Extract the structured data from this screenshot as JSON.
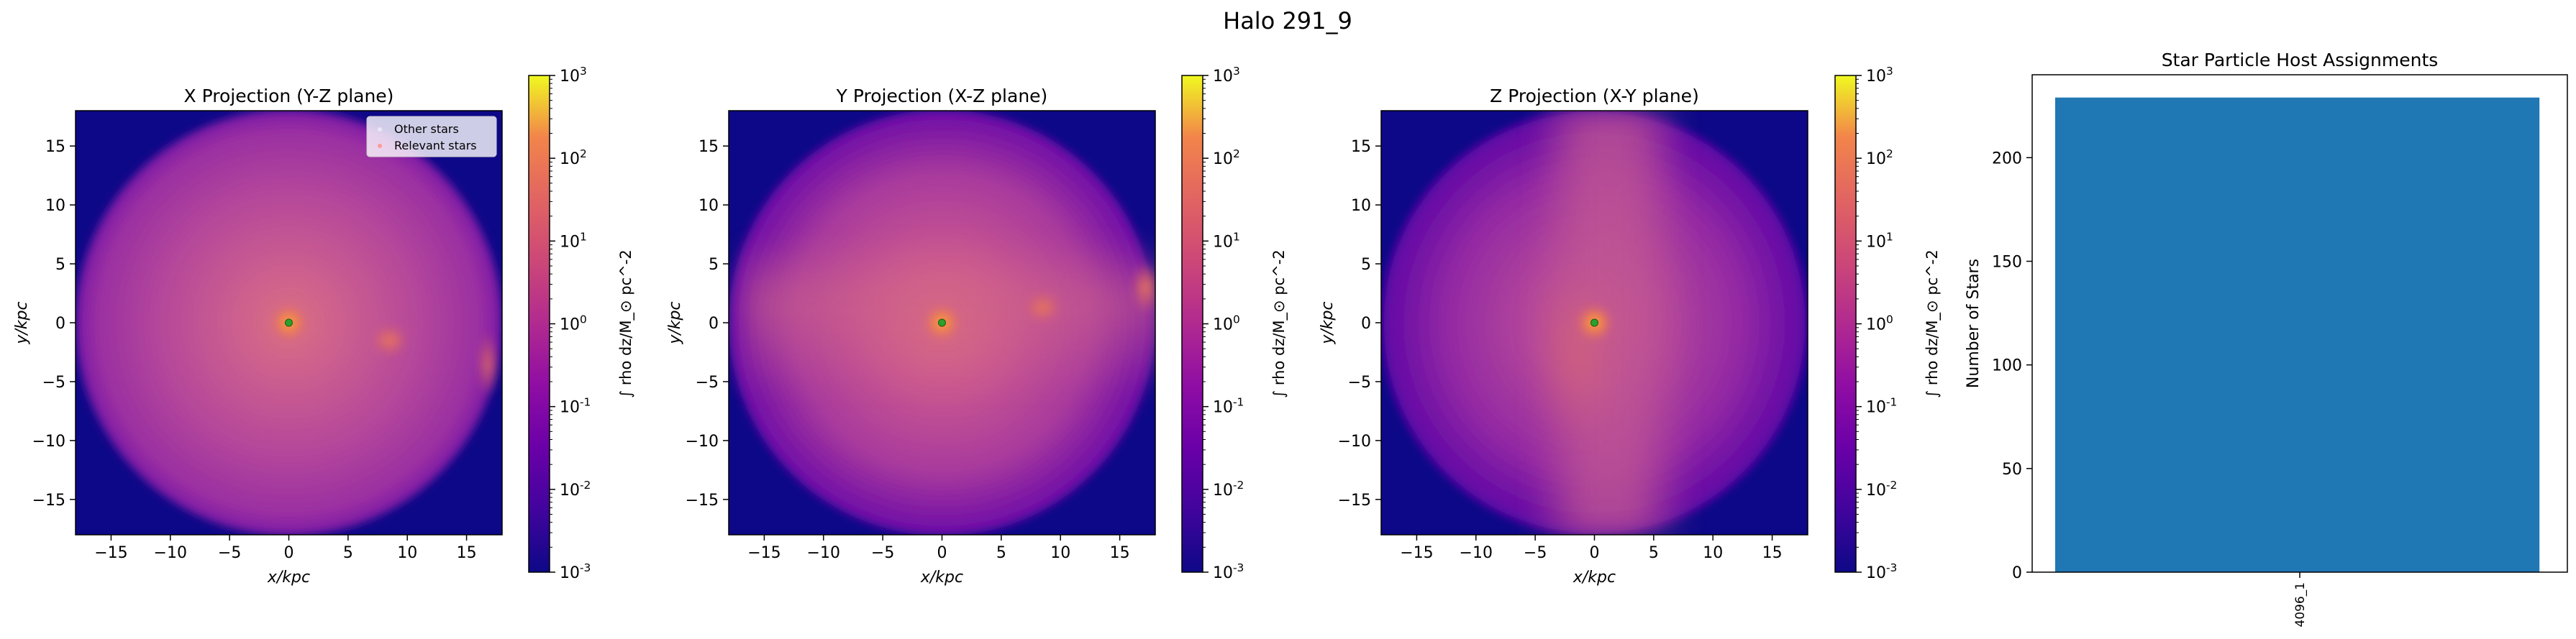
{
  "figure": {
    "suptitle": "Halo 291_9"
  },
  "colorbar": {
    "label": "∫ rho dz/M_⊙ pc^-2",
    "tick_labels": [
      "10^-3",
      "10^-2",
      "10^-1",
      "10^0",
      "10^1",
      "10^2",
      "10^3"
    ],
    "range": [
      0.001,
      1000
    ],
    "scale": "log",
    "colormap": "plasma"
  },
  "chart_data": [
    {
      "type": "heatmap",
      "title": "X Projection (Y-Z plane)",
      "xlabel": "x/kpc",
      "ylabel": "y/kpc",
      "xlim": [
        -18,
        18
      ],
      "ylim": [
        -18,
        18
      ],
      "ticks": [
        -15,
        -10,
        -5,
        0,
        5,
        10,
        15
      ],
      "center_marker": [
        0,
        0
      ],
      "legend": {
        "placement": "top-right",
        "entries": [
          "Other stars",
          "Relevant stars"
        ]
      }
    },
    {
      "type": "heatmap",
      "title": "Y Projection (X-Z plane)",
      "xlabel": "x/kpc",
      "ylabel": "y/kpc",
      "xlim": [
        -18,
        18
      ],
      "ylim": [
        -18,
        18
      ],
      "ticks": [
        -15,
        -10,
        -5,
        0,
        5,
        10,
        15
      ],
      "center_marker": [
        0,
        0
      ]
    },
    {
      "type": "heatmap",
      "title": "Z Projection (X-Y plane)",
      "xlabel": "x/kpc",
      "ylabel": "y/kpc",
      "xlim": [
        -18,
        18
      ],
      "ylim": [
        -18,
        18
      ],
      "ticks": [
        -15,
        -10,
        -5,
        0,
        5,
        10,
        15
      ],
      "center_marker": [
        0,
        0
      ]
    },
    {
      "type": "bar",
      "title": "Star Particle Host Assignments",
      "xlabel": "",
      "ylabel": "Number of Stars",
      "categories": [
        "4096_1"
      ],
      "values": [
        229
      ],
      "ylim": [
        0,
        240
      ],
      "yticks": [
        0,
        50,
        100,
        150,
        200
      ],
      "bar_color": "#1f77b4"
    }
  ]
}
